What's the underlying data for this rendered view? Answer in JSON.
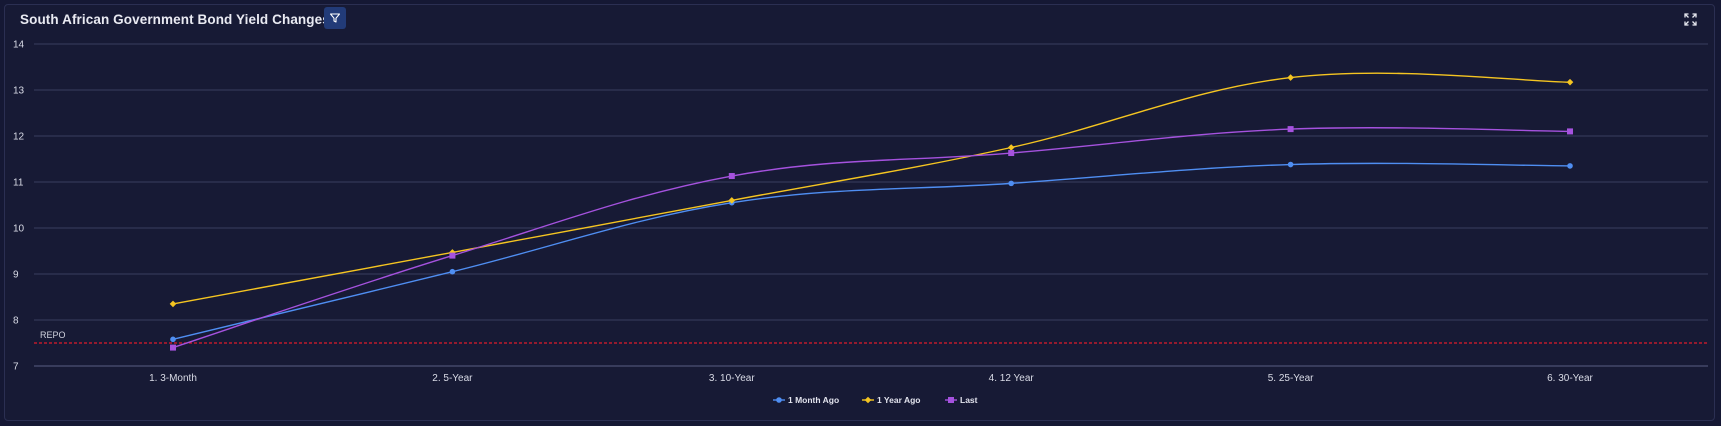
{
  "header": {
    "title": "South African Government Bond Yield Changes",
    "filter_icon": "filter-icon",
    "expand_icon": "expand-icon"
  },
  "colors": {
    "background": "#171a35",
    "grid": "#3a3e60",
    "repo_line": "#e01b2a",
    "filter_button": "#223b78"
  },
  "chart_data": {
    "type": "line",
    "categories": [
      "1. 3-Month",
      "2. 5-Year",
      "3. 10-Year",
      "4. 12 Year",
      "5. 25-Year",
      "6. 30-Year"
    ],
    "ylim": [
      7,
      14
    ],
    "yticks": [
      7,
      8,
      9,
      10,
      11,
      12,
      13,
      14
    ],
    "grid": true,
    "legend_position": "bottom-center",
    "series": [
      {
        "name": "1 Month Ago",
        "color": "#4f8ef2",
        "marker": "circle",
        "values": [
          7.58,
          9.05,
          10.55,
          10.97,
          11.38,
          11.35
        ]
      },
      {
        "name": "1 Year Ago",
        "color": "#f5c521",
        "marker": "diamond",
        "values": [
          8.35,
          9.47,
          10.6,
          11.75,
          13.27,
          13.17
        ]
      },
      {
        "name": "Last",
        "color": "#a552de",
        "marker": "square",
        "values": [
          7.4,
          9.4,
          11.13,
          11.63,
          12.15,
          12.1
        ]
      }
    ],
    "reference_lines": [
      {
        "label": "REPO",
        "value": 7.5,
        "style": "dashed",
        "color": "#e01b2a"
      }
    ]
  }
}
